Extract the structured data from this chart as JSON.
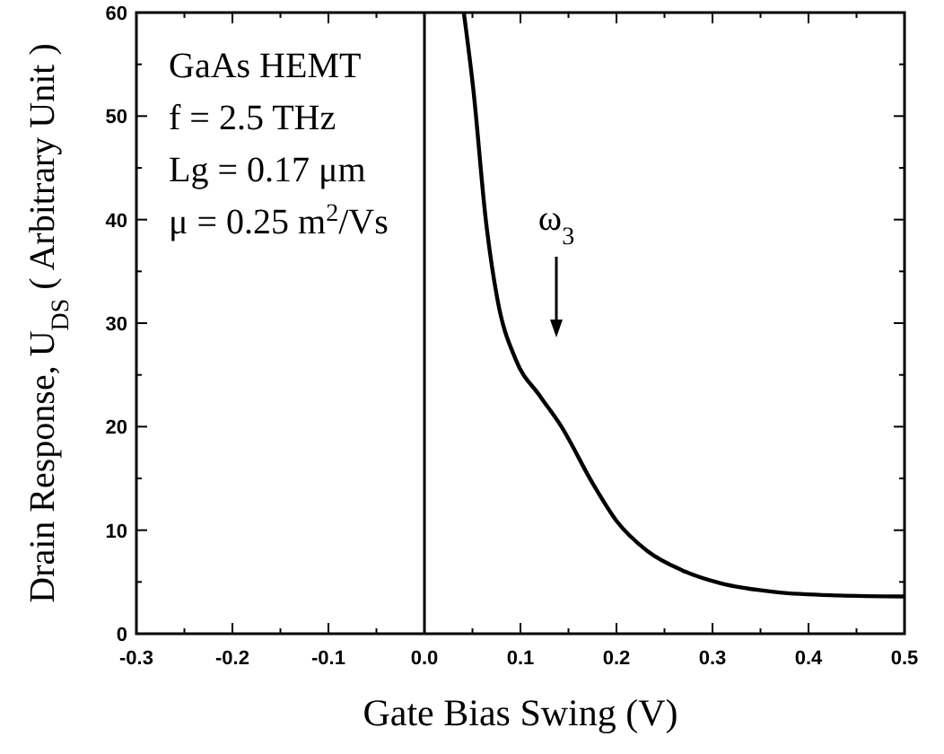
{
  "chart_data": {
    "type": "line",
    "xlabel": "Gate Bias Swing (V)",
    "ylabel": "Drain Response,  U$_{DS}$ ( Arbitrary Unit )",
    "series": [
      {
        "color": "#000000",
        "x": [
          0.041,
          0.051,
          0.064,
          0.076,
          0.095,
          0.12,
          0.142,
          0.176,
          0.2,
          0.232,
          0.269,
          0.307,
          0.368,
          0.431,
          0.5
        ],
        "values": [
          60,
          52.5,
          39.9,
          32.3,
          26.5,
          23,
          20.1,
          14.4,
          10.9,
          8.0,
          6.1,
          4.9,
          4.0,
          3.7,
          3.6
        ]
      }
    ],
    "xlim": [
      -0.3,
      0.5
    ],
    "xticks": [
      -0.3,
      -0.2,
      -0.1,
      {
        "value": 0,
        "label": "0.0"
      },
      0.1,
      0.2,
      0.3,
      0.4,
      0.5
    ],
    "ylim": [
      0,
      60
    ],
    "yticks": [
      0,
      10,
      20,
      30,
      40,
      50,
      60
    ],
    "ref_lines": [
      {
        "axis": "x",
        "value": 0
      }
    ],
    "annotations": [
      "GaAs HEMT",
      "f = 2.5 THz",
      "Lg = 0.17 μm",
      "μ = 0.25 m$^{2}$/Vs",
      "ω$_{3}$"
    ],
    "marker": "none",
    "line_style": "solid",
    "grid": false
  }
}
